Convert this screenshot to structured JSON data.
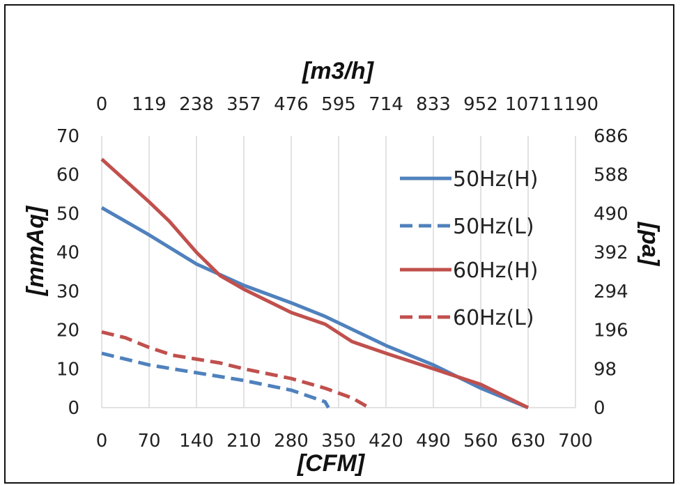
{
  "chart_data": {
    "type": "line",
    "title": "",
    "xlabel": "[CFM]",
    "x2label": "[m3/h]",
    "ylabel": "[mmAq]",
    "y2label": "[pa]",
    "xlim": [
      0,
      700
    ],
    "ylim": [
      0,
      70
    ],
    "x_ticks": [
      "0",
      "70",
      "140",
      "210",
      "280",
      "350",
      "420",
      "490",
      "560",
      "630",
      "700"
    ],
    "x2_ticks": [
      "0",
      "119",
      "238",
      "357",
      "476",
      "595",
      "714",
      "833",
      "952",
      "1071",
      "1190"
    ],
    "y_ticks": [
      "0",
      "10",
      "20",
      "30",
      "40",
      "50",
      "60",
      "70"
    ],
    "y2_ticks": [
      "0",
      "98",
      "196",
      "294",
      "392",
      "490",
      "588",
      "686"
    ],
    "grid": "vertical",
    "legend": "right",
    "series": [
      {
        "name": "50Hz(H)",
        "color": "#4f81bd",
        "dash": "solid",
        "points": [
          [
            0,
            51.5
          ],
          [
            70,
            44.5
          ],
          [
            140,
            37
          ],
          [
            210,
            31.5
          ],
          [
            280,
            27
          ],
          [
            330,
            23.5
          ],
          [
            420,
            16
          ],
          [
            490,
            11
          ],
          [
            560,
            5
          ],
          [
            630,
            0
          ]
        ]
      },
      {
        "name": "50Hz(L)",
        "color": "#4f81bd",
        "dash": "dashed",
        "points": [
          [
            0,
            14
          ],
          [
            70,
            11
          ],
          [
            140,
            9
          ],
          [
            210,
            7
          ],
          [
            280,
            4.5
          ],
          [
            330,
            1.5
          ],
          [
            335,
            0
          ]
        ]
      },
      {
        "name": "60Hz(H)",
        "color": "#c0504d",
        "dash": "solid",
        "points": [
          [
            0,
            64
          ],
          [
            70,
            53
          ],
          [
            100,
            48
          ],
          [
            140,
            40
          ],
          [
            175,
            34
          ],
          [
            210,
            30.5
          ],
          [
            280,
            24.5
          ],
          [
            330,
            21.5
          ],
          [
            370,
            17
          ],
          [
            420,
            14
          ],
          [
            490,
            10
          ],
          [
            560,
            6
          ],
          [
            630,
            0
          ]
        ]
      },
      {
        "name": "60Hz(L)",
        "color": "#c0504d",
        "dash": "dashed",
        "points": [
          [
            0,
            19.5
          ],
          [
            35,
            18
          ],
          [
            70,
            15.5
          ],
          [
            105,
            13.5
          ],
          [
            175,
            11.5
          ],
          [
            210,
            10
          ],
          [
            280,
            7.5
          ],
          [
            330,
            5
          ],
          [
            370,
            2.5
          ],
          [
            395,
            0
          ]
        ]
      }
    ]
  }
}
